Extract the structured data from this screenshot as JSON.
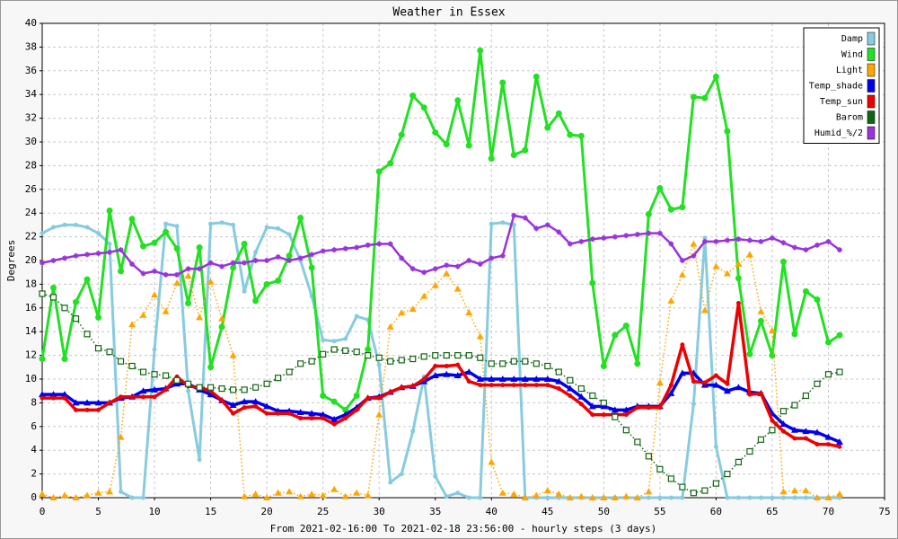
{
  "chart_data": {
    "type": "line",
    "title": "Weather in Essex",
    "y_label": "Degrees",
    "x_label": "From 2021-02-16:00 To 2021-02-18 23:56:00 - hourly steps (3 days)",
    "x": [
      0,
      1,
      2,
      3,
      4,
      5,
      6,
      7,
      8,
      9,
      10,
      11,
      12,
      13,
      14,
      15,
      16,
      17,
      18,
      19,
      20,
      21,
      22,
      23,
      24,
      25,
      26,
      27,
      28,
      29,
      30,
      31,
      32,
      33,
      34,
      35,
      36,
      37,
      38,
      39,
      40,
      41,
      42,
      43,
      44,
      45,
      46,
      47,
      48,
      49,
      50,
      51,
      52,
      53,
      54,
      55,
      56,
      57,
      58,
      59,
      60,
      61,
      62,
      63,
      64,
      65,
      66,
      67,
      68,
      69,
      70,
      71
    ],
    "xlim": [
      0,
      75
    ],
    "xticks": [
      0,
      5,
      10,
      15,
      20,
      25,
      30,
      35,
      40,
      45,
      50,
      55,
      60,
      65,
      70,
      75
    ],
    "ylim": [
      0,
      40
    ],
    "yticks": [
      0,
      2,
      4,
      6,
      8,
      10,
      12,
      14,
      16,
      18,
      20,
      22,
      24,
      26,
      28,
      30,
      32,
      34,
      36,
      38,
      40
    ],
    "grid": true,
    "legend": "upper right",
    "series": [
      {
        "name": "Damp",
        "color": "#87cbe0",
        "marker": "dot",
        "dash": "solid",
        "width": 3,
        "values": [
          22.3,
          22.8,
          23.0,
          23.0,
          22.8,
          22.3,
          21.4,
          0.5,
          0,
          0,
          12.5,
          23.1,
          22.9,
          9.0,
          3.2,
          23.1,
          23.2,
          23.0,
          17.4,
          20.7,
          22.8,
          22.7,
          22.2,
          20.0,
          17.0,
          13.3,
          13.2,
          13.4,
          15.3,
          15.0,
          11.2,
          1.3,
          2.0,
          5.6,
          10.2,
          1.8,
          0.1,
          0.4,
          0,
          0,
          23.1,
          23.2,
          23.0,
          0,
          0,
          0,
          0,
          0,
          0,
          0,
          0,
          0,
          0,
          0,
          0,
          0,
          0,
          0,
          7.9,
          21.9,
          4.3,
          0,
          0,
          0,
          0,
          0,
          0,
          0,
          0,
          0,
          0,
          0
        ]
      },
      {
        "name": "Wind",
        "color": "#22e022",
        "marker": "circle",
        "dash": "solid",
        "width": 3,
        "values": [
          11.7,
          17.7,
          11.7,
          16.5,
          18.4,
          15.2,
          24.2,
          19.1,
          23.5,
          21.2,
          21.5,
          22.4,
          21.0,
          16.4,
          21.1,
          11.0,
          14.4,
          19.4,
          21.4,
          16.6,
          18.0,
          18.3,
          20.4,
          23.6,
          19.4,
          8.6,
          8.1,
          7.4,
          8.6,
          12.5,
          27.5,
          28.2,
          30.6,
          33.9,
          32.9,
          30.8,
          29.8,
          33.5,
          29.7,
          37.7,
          28.6,
          35.0,
          28.9,
          29.3,
          35.5,
          31.2,
          32.4,
          30.6,
          30.5,
          18.1,
          11.1,
          13.7,
          14.5,
          11.3,
          23.9,
          26.1,
          24.3,
          24.5,
          33.8,
          33.7,
          35.5,
          30.9,
          18.5,
          12.1,
          14.9,
          12.0,
          19.9,
          13.8,
          17.4,
          16.7,
          13.1,
          13.7
        ]
      },
      {
        "name": "Light",
        "color": "#ffa500",
        "marker": "triangle",
        "dash": "dotted",
        "width": 1.5,
        "values": [
          0.3,
          0,
          0.2,
          0,
          0.2,
          0.4,
          0.5,
          5.1,
          14.6,
          15.4,
          17.1,
          15.7,
          18.1,
          18.7,
          15.2,
          18.2,
          15.1,
          12.0,
          0.1,
          0.3,
          0,
          0.4,
          0.5,
          0.1,
          0.3,
          0.2,
          0.7,
          0.1,
          0.4,
          0.2,
          7.0,
          14.4,
          15.6,
          15.9,
          17.0,
          17.9,
          18.9,
          17.6,
          15.6,
          13.6,
          3.0,
          0.4,
          0.3,
          0,
          0.2,
          0.6,
          0.3,
          0,
          0.1,
          0,
          0,
          0,
          0.1,
          0,
          0.5,
          9.7,
          16.6,
          18.8,
          21.4,
          15.8,
          19.5,
          18.9,
          19.7,
          20.5,
          15.7,
          14.1,
          0.5,
          0.6,
          0.6,
          0,
          0,
          0.3
        ]
      },
      {
        "name": "Temp_shade",
        "color": "#0000ee",
        "marker": "triangle",
        "dash": "solid",
        "width": 3.5,
        "values": [
          8.7,
          8.7,
          8.7,
          8.0,
          8.0,
          8.0,
          8.0,
          8.4,
          8.5,
          9.0,
          9.1,
          9.2,
          9.6,
          9.6,
          9.1,
          8.7,
          8.2,
          7.8,
          8.1,
          8.1,
          7.7,
          7.3,
          7.3,
          7.2,
          7.1,
          7.0,
          6.6,
          7.0,
          7.6,
          8.4,
          8.5,
          8.9,
          9.3,
          9.4,
          9.8,
          10.3,
          10.4,
          10.3,
          10.6,
          10.0,
          10.0,
          10.0,
          10.0,
          10.0,
          10.0,
          10.0,
          9.8,
          9.2,
          8.5,
          7.7,
          7.7,
          7.4,
          7.4,
          7.7,
          7.7,
          7.7,
          8.8,
          10.5,
          10.5,
          9.5,
          9.5,
          9.0,
          9.3,
          8.9,
          8.8,
          7.1,
          6.2,
          5.7,
          5.6,
          5.5,
          5.1,
          4.7
        ]
      },
      {
        "name": "Temp_sun",
        "color": "#ee0000",
        "marker": "dot",
        "dash": "solid",
        "width": 3.5,
        "values": [
          8.4,
          8.4,
          8.4,
          7.4,
          7.4,
          7.4,
          8.0,
          8.5,
          8.5,
          8.5,
          8.5,
          9.1,
          10.2,
          9.4,
          9.3,
          9.0,
          8.2,
          7.1,
          7.6,
          7.7,
          7.1,
          7.1,
          7.1,
          6.7,
          6.7,
          6.7,
          6.2,
          6.7,
          7.4,
          8.4,
          8.4,
          8.9,
          9.3,
          9.4,
          10.0,
          11.1,
          11.1,
          11.2,
          9.8,
          9.5,
          9.5,
          9.5,
          9.5,
          9.5,
          9.5,
          9.5,
          9.2,
          8.6,
          7.9,
          7.0,
          7.0,
          7.0,
          7.0,
          7.6,
          7.6,
          7.6,
          9.5,
          12.9,
          9.8,
          9.7,
          10.3,
          9.6,
          16.4,
          8.7,
          8.8,
          6.5,
          5.6,
          5.0,
          5.0,
          4.5,
          4.5,
          4.3
        ]
      },
      {
        "name": "Barom",
        "color": "#116611",
        "marker": "square",
        "dash": "dotted",
        "width": 1.5,
        "values": [
          17.2,
          16.9,
          16.0,
          15.1,
          13.8,
          12.6,
          12.3,
          11.5,
          11.1,
          10.6,
          10.4,
          10.3,
          9.9,
          9.6,
          9.3,
          9.3,
          9.2,
          9.1,
          9.1,
          9.3,
          9.6,
          10.1,
          10.6,
          11.3,
          11.5,
          12.1,
          12.5,
          12.4,
          12.3,
          12.0,
          11.8,
          11.5,
          11.6,
          11.7,
          11.9,
          12.0,
          12.0,
          12.0,
          12.0,
          11.8,
          11.3,
          11.3,
          11.5,
          11.5,
          11.3,
          11.1,
          10.6,
          9.9,
          9.2,
          8.6,
          8.0,
          6.8,
          5.7,
          4.7,
          3.5,
          2.4,
          1.6,
          0.9,
          0.4,
          0.6,
          1.2,
          2.0,
          3.0,
          3.9,
          4.9,
          5.7,
          7.3,
          7.8,
          8.6,
          9.6,
          10.4,
          10.6
        ]
      },
      {
        "name": "Humid_%/2",
        "color": "#9933dd",
        "marker": "star",
        "dash": "solid",
        "width": 2.5,
        "values": [
          19.8,
          20.0,
          20.2,
          20.4,
          20.5,
          20.6,
          20.7,
          20.9,
          19.7,
          18.9,
          19.1,
          18.8,
          18.8,
          19.3,
          19.3,
          19.8,
          19.5,
          19.8,
          19.8,
          20.0,
          20.0,
          20.3,
          20.0,
          20.2,
          20.5,
          20.8,
          20.9,
          21.0,
          21.1,
          21.3,
          21.4,
          21.4,
          20.2,
          19.3,
          19.0,
          19.3,
          19.6,
          19.5,
          20.0,
          19.7,
          20.2,
          20.4,
          23.8,
          23.6,
          22.7,
          23.0,
          22.4,
          21.4,
          21.6,
          21.8,
          21.9,
          22.0,
          22.1,
          22.2,
          22.3,
          22.3,
          21.4,
          20.0,
          20.4,
          21.6,
          21.6,
          21.7,
          21.8,
          21.7,
          21.6,
          21.9,
          21.5,
          21.1,
          20.9,
          21.3,
          21.6,
          20.9
        ]
      }
    ]
  }
}
